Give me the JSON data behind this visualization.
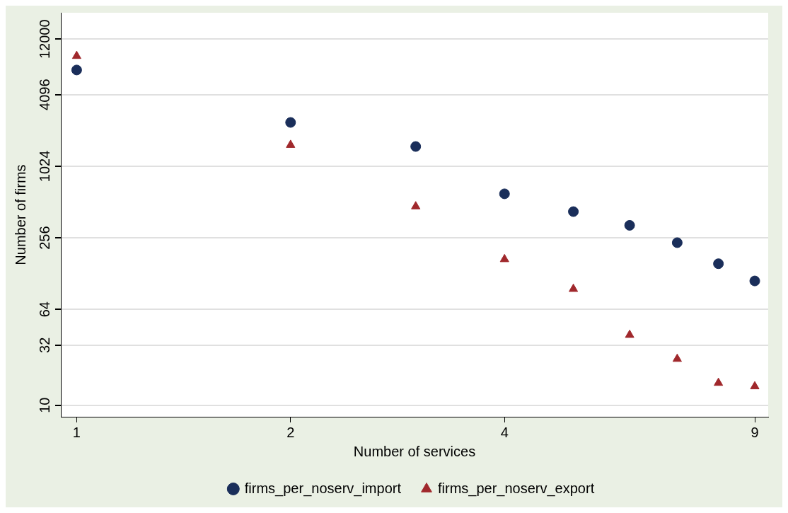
{
  "chart_data": {
    "type": "scatter",
    "xlabel": "Number of services",
    "ylabel": "Number of firms",
    "x": [
      1,
      2,
      3,
      4,
      5,
      6,
      7,
      8,
      9
    ],
    "series": [
      {
        "name": "firms_per_noserv_import",
        "color": "#1a2e5a",
        "marker": "circle",
        "values": [
          6600,
          2390,
          1500,
          600,
          425,
          326,
          233,
          155,
          111
        ]
      },
      {
        "name": "firms_per_noserv_export",
        "color": "#a0282c",
        "marker": "triangle",
        "values": [
          8650,
          1545,
          470,
          169,
          95,
          39,
          24.5,
          15.4,
          14.4
        ]
      }
    ],
    "log": "xy",
    "xlim": [
      0.95,
      9.4
    ],
    "xticks": [
      1,
      2,
      4,
      9
    ],
    "ylim": [
      8,
      20000
    ],
    "yticks": [
      10,
      32,
      64,
      256,
      1024,
      4096,
      12000
    ],
    "grid": "y",
    "legend": "bottom"
  }
}
